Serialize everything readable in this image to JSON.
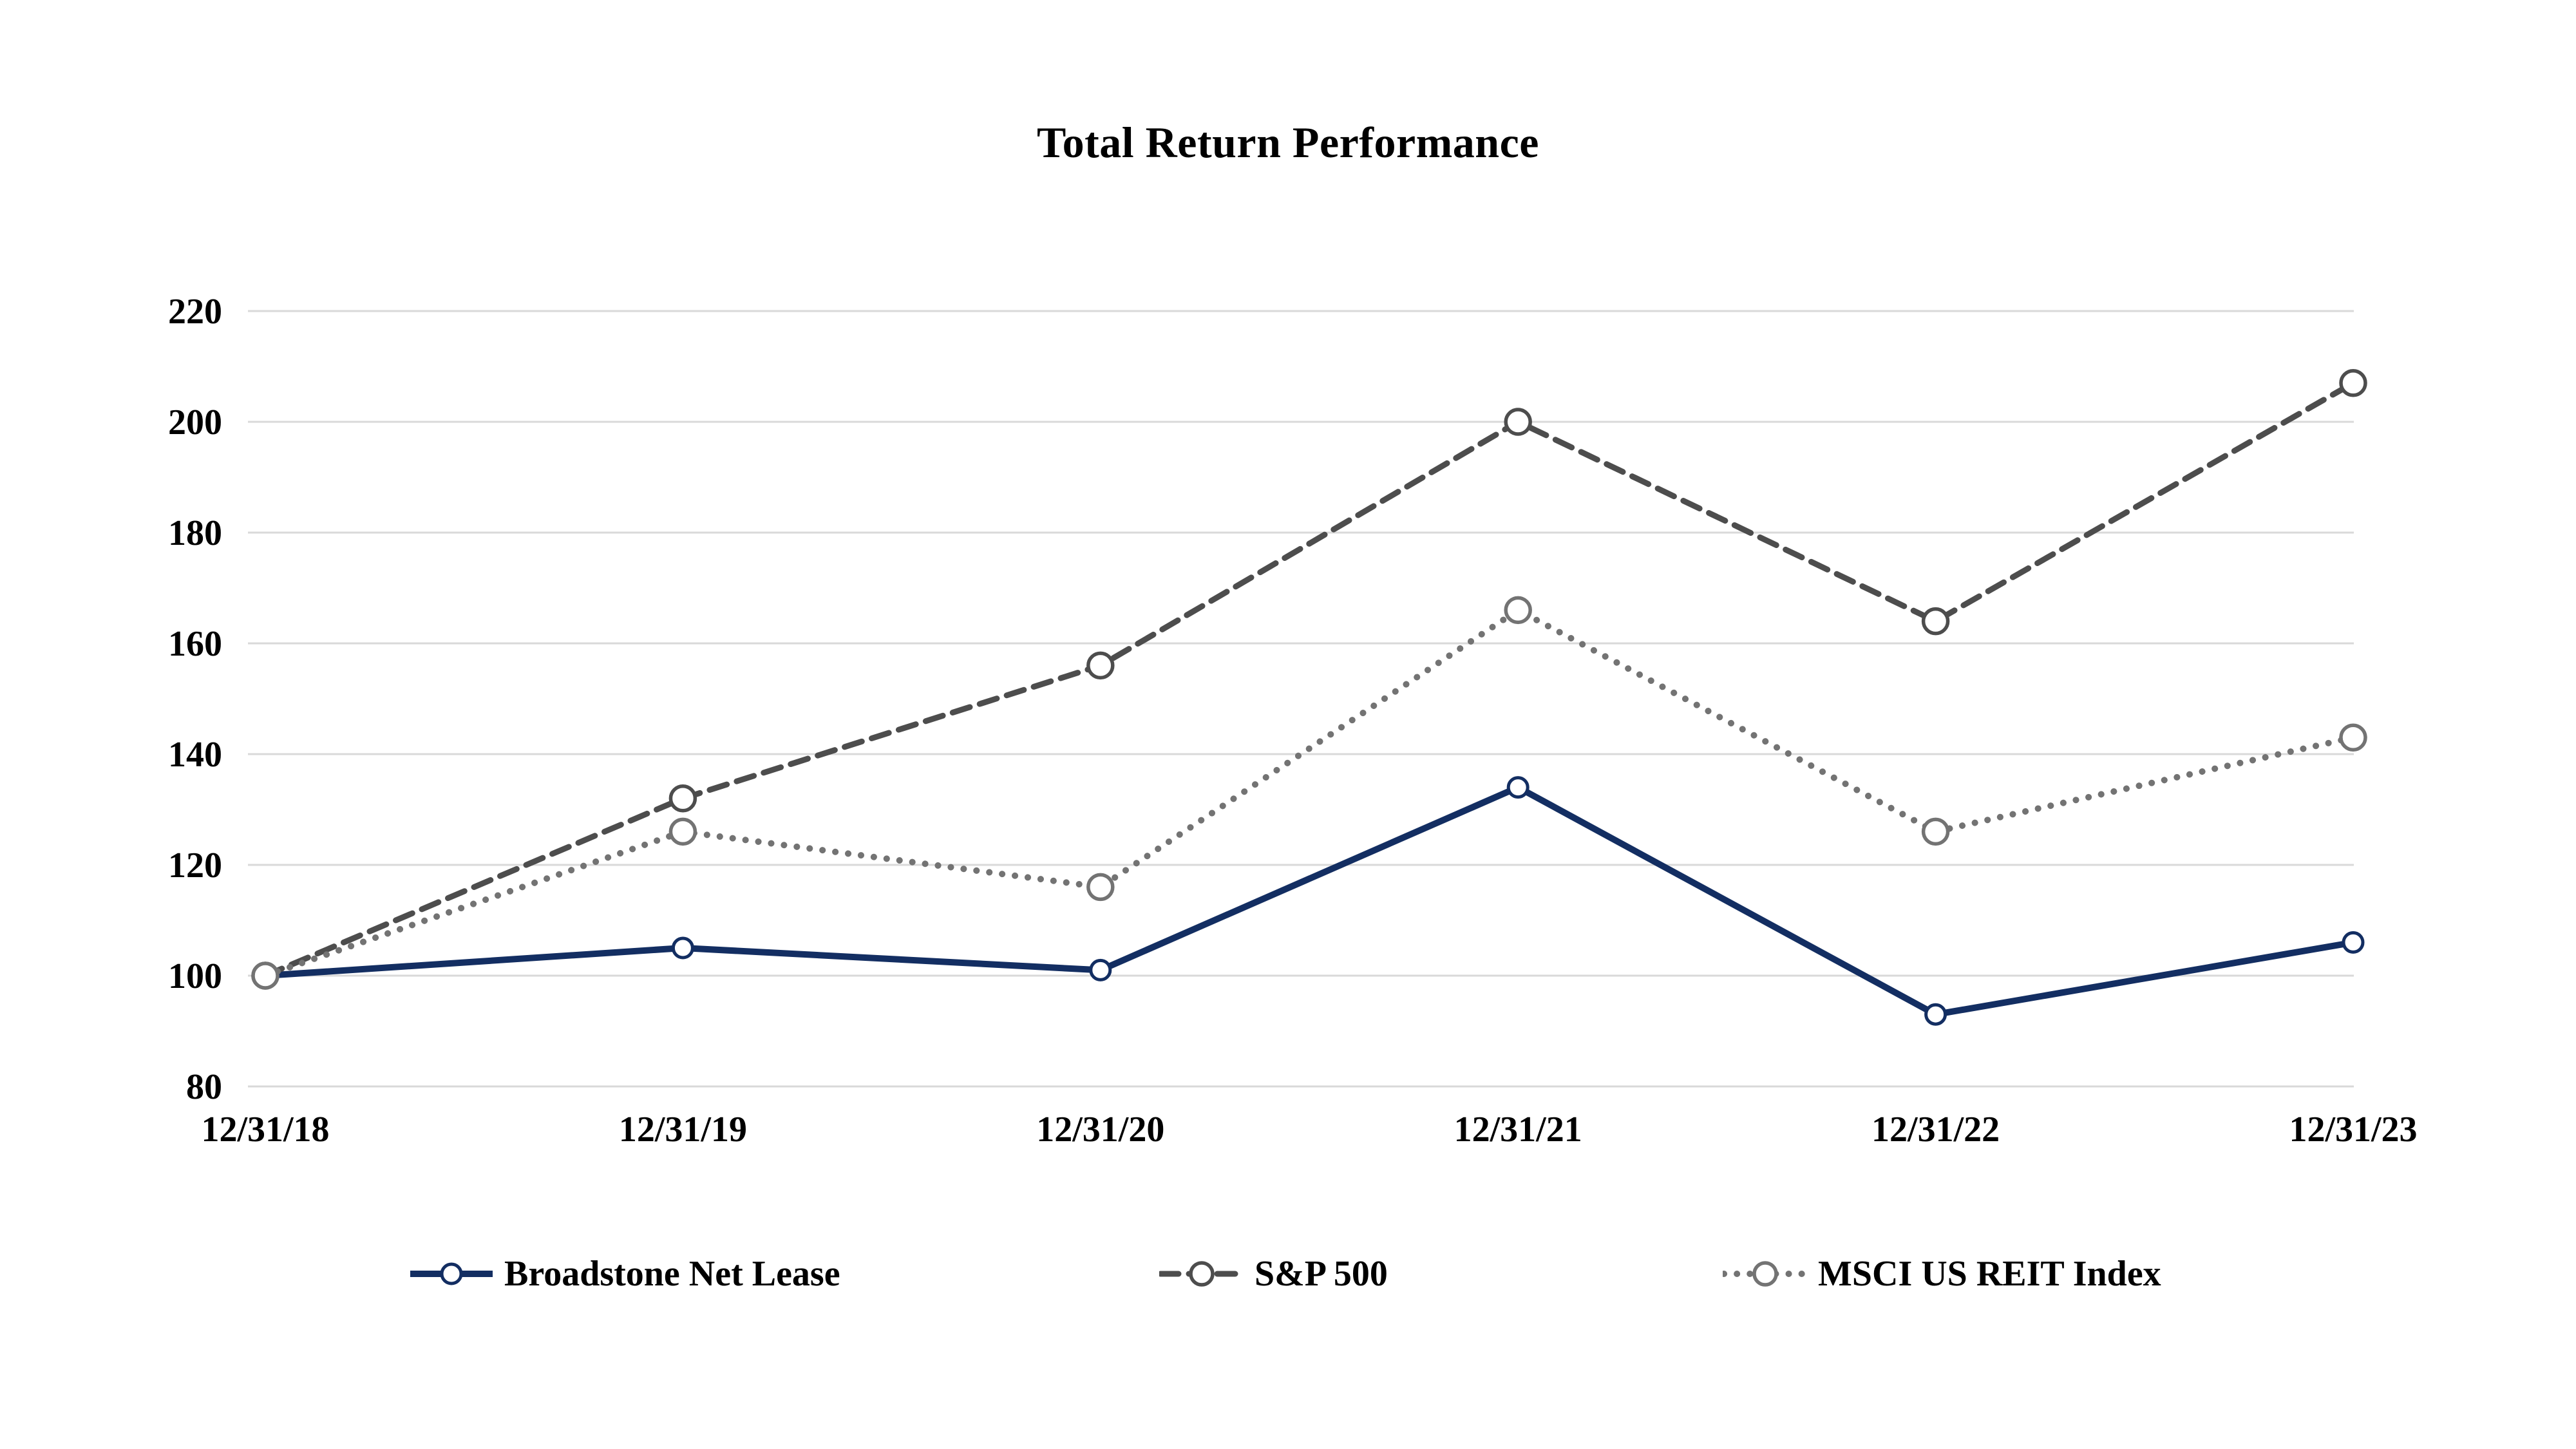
{
  "title": "Total Return Performance",
  "chart_data": {
    "type": "line",
    "title": "Total Return Performance",
    "x_categories": [
      "12/31/18",
      "12/31/19",
      "12/31/20",
      "12/31/21",
      "12/31/22",
      "12/31/23"
    ],
    "y_axis": {
      "min": 80,
      "max": 220,
      "tick_step": 20,
      "tick_labels": [
        "80",
        "100",
        "120",
        "140",
        "160",
        "180",
        "200",
        "220"
      ]
    },
    "grid": true,
    "legend_position": "bottom",
    "series": [
      {
        "name": "Broadstone Net Lease",
        "slug": "broadstone-net-lease",
        "style": "solid",
        "color": "#132e62",
        "marker": "open-circle",
        "values": [
          100,
          105,
          101,
          134,
          93,
          106
        ]
      },
      {
        "name": "S&P 500",
        "slug": "sp-500",
        "style": "dashed",
        "color": "#4d4d4d",
        "marker": "open-circle",
        "values": [
          100,
          132,
          156,
          200,
          164,
          207
        ]
      },
      {
        "name": "MSCI US REIT Index",
        "slug": "msci-us-reit-index",
        "style": "dotted",
        "color": "#737373",
        "marker": "open-circle",
        "values": [
          100,
          126,
          116,
          166,
          126,
          143
        ]
      }
    ]
  },
  "colors": {
    "background": "#ffffff",
    "gridline": "#d9d9d9",
    "text": "#000000"
  }
}
